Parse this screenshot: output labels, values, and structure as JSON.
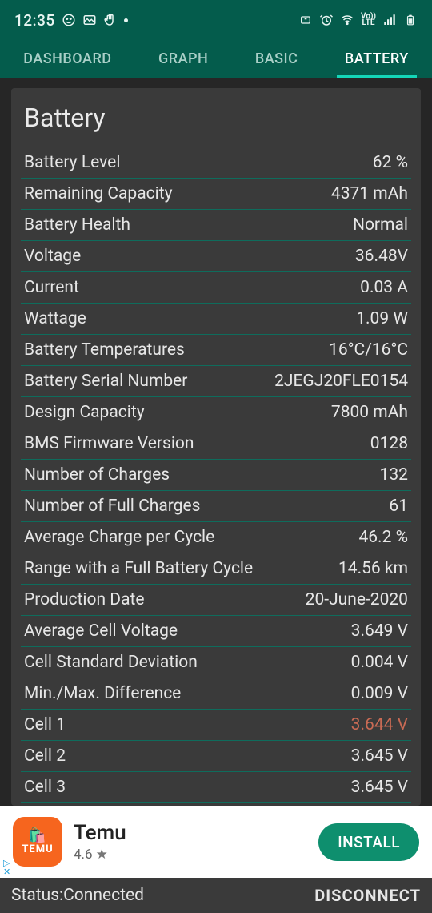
{
  "status": {
    "time": "12:35",
    "volte": "Vo))\nLTE"
  },
  "tabs": [
    {
      "label": "DASHBOARD",
      "active": false
    },
    {
      "label": "GRAPH",
      "active": false
    },
    {
      "label": "BASIC",
      "active": false
    },
    {
      "label": "BATTERY",
      "active": true
    }
  ],
  "card": {
    "title": "Battery",
    "rows": [
      {
        "label": "Battery Level",
        "value": "62 %"
      },
      {
        "label": "Remaining Capacity",
        "value": "4371 mAh"
      },
      {
        "label": "Battery Health",
        "value": "Normal"
      },
      {
        "label": "Voltage",
        "value": "36.48V"
      },
      {
        "label": "Current",
        "value": "0.03 A"
      },
      {
        "label": "Wattage",
        "value": "1.09 W"
      },
      {
        "label": "Battery Temperatures",
        "value": "16°C/16°C"
      },
      {
        "label": "Battery Serial Number",
        "value": "2JEGJ20FLE0154"
      },
      {
        "label": "Design Capacity",
        "value": "7800 mAh"
      },
      {
        "label": "BMS Firmware Version",
        "value": "0128"
      },
      {
        "label": "Number of Charges",
        "value": "132"
      },
      {
        "label": "Number of Full Charges",
        "value": "61"
      },
      {
        "label": "Average Charge per Cycle",
        "value": "46.2 %"
      },
      {
        "label": "Range with a Full Battery Cycle",
        "value": "14.56 km"
      },
      {
        "label": "Production Date",
        "value": "20-June-2020"
      },
      {
        "label": "Average Cell Voltage",
        "value": "3.649 V"
      },
      {
        "label": "Cell Standard Deviation",
        "value": "0.004 V"
      },
      {
        "label": "Min./Max. Difference",
        "value": "0.009 V"
      },
      {
        "label": "Cell 1",
        "value": "3.644 V",
        "warn": true
      },
      {
        "label": "Cell 2",
        "value": "3.645 V"
      },
      {
        "label": "Cell 3",
        "value": "3.645 V"
      }
    ]
  },
  "ad": {
    "icon_text_top": "🛍️",
    "icon_text_bottom": "TEMU",
    "title": "Temu",
    "rating": "4.6",
    "star": "★",
    "button": "INSTALL",
    "ad_marker": "▷",
    "ad_close": "✕",
    "colors": {
      "icon_bg": "#f6651e",
      "button_bg": "#0e8f6e"
    }
  },
  "bottom": {
    "status": "Status:Connected",
    "action": "DISCONNECT"
  },
  "colors": {
    "header_bg": "#045c4c",
    "tab_indicator": "#14d6b8",
    "content_bg": "#262626",
    "card_bg": "#3a3a3a",
    "row_divider": "#0e6c5c",
    "text": "#e6e6e6",
    "warn_text": "#c96a54"
  }
}
